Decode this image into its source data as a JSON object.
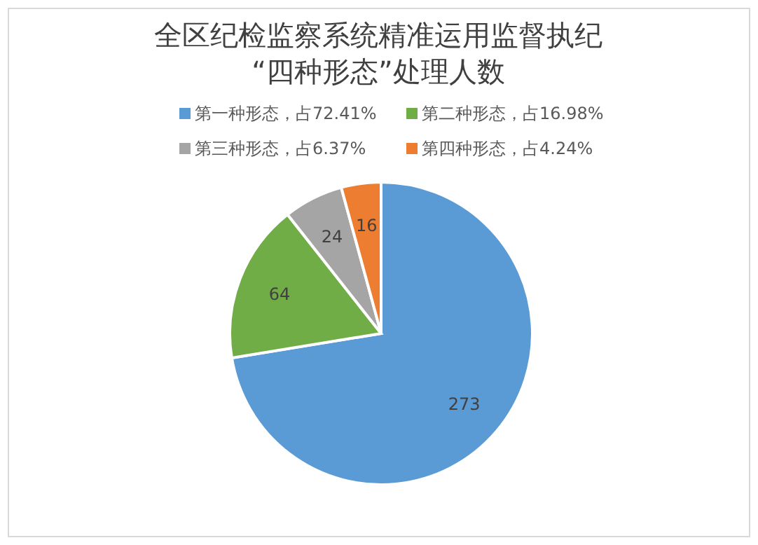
{
  "chart_data": {
    "type": "pie",
    "title": "全区纪检监察系统精准运用监督执纪\n“四种形态”处理人数",
    "categories": [
      "第一种形态，占72.41%",
      "第二种形态，占16.98%",
      "第三种形态，占6.37%",
      "第四种形态，占4.24%"
    ],
    "values": [
      273,
      64,
      24,
      16
    ],
    "colors": [
      "#5b9bd5",
      "#70ad47",
      "#a5a5a5",
      "#ed7d31"
    ],
    "data_labels": true,
    "legend": "top"
  }
}
